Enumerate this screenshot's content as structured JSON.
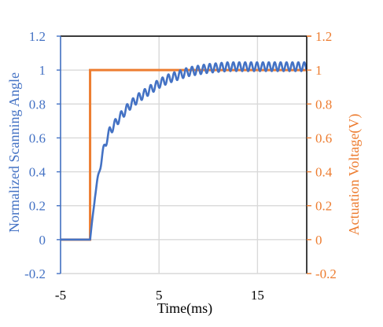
{
  "chart_data": {
    "type": "line",
    "title": "",
    "xlabel": "Time(ms)",
    "ylabel": "Normalized Scanning Angle",
    "y2label": "Actuation Voltage(V)",
    "xlim": [
      -5,
      20
    ],
    "ylim": [
      -0.2,
      1.2
    ],
    "y2lim": [
      -0.2,
      1.2
    ],
    "x_ticks": [
      "-5",
      "5",
      "15"
    ],
    "x_tick_values": [
      -5,
      5,
      15
    ],
    "y_ticks": [
      "-0.2",
      "0",
      "0.2",
      "0.4",
      "0.6",
      "0.8",
      "1",
      "1.2"
    ],
    "y_tick_values": [
      -0.2,
      0,
      0.2,
      0.4,
      0.6,
      0.8,
      1,
      1.2
    ],
    "y2_ticks": [
      "-0.2",
      "0",
      "0.2",
      "0.4",
      "0.6",
      "0.8",
      "1",
      "1.2"
    ],
    "y2_tick_values": [
      -0.2,
      0,
      0.2,
      0.4,
      0.6,
      0.8,
      1,
      1.2
    ],
    "grid": {
      "vertical": true,
      "horizontal": true
    },
    "legend": "none",
    "colors": {
      "angle": "#4472C4",
      "voltage": "#ED7D31",
      "grid": "#D9D9D9",
      "frame": "#000000"
    },
    "series": [
      {
        "axis": "left",
        "color": "#4472C4",
        "step_time": -2,
        "x": [
          -5,
          -2,
          -1.5,
          -1,
          -0.5,
          0,
          0.5,
          1,
          2,
          3,
          4,
          5,
          6,
          7,
          8,
          9,
          10,
          12,
          14,
          16,
          18,
          20
        ],
        "y": [
          0,
          0,
          0.26,
          0.43,
          0.56,
          0.64,
          0.68,
          0.72,
          0.79,
          0.84,
          0.88,
          0.92,
          0.95,
          0.97,
          0.99,
          1.0,
          1.01,
          1.02,
          1.02,
          1.02,
          1.02,
          1.02
        ],
        "oscillation_amplitude": 0.026,
        "oscillation_period_ms": 0.6
      },
      {
        "axis": "right",
        "color": "#ED7D31",
        "x": [
          -5,
          -2,
          -2,
          20
        ],
        "y": [
          0,
          0,
          1,
          1
        ]
      }
    ]
  }
}
